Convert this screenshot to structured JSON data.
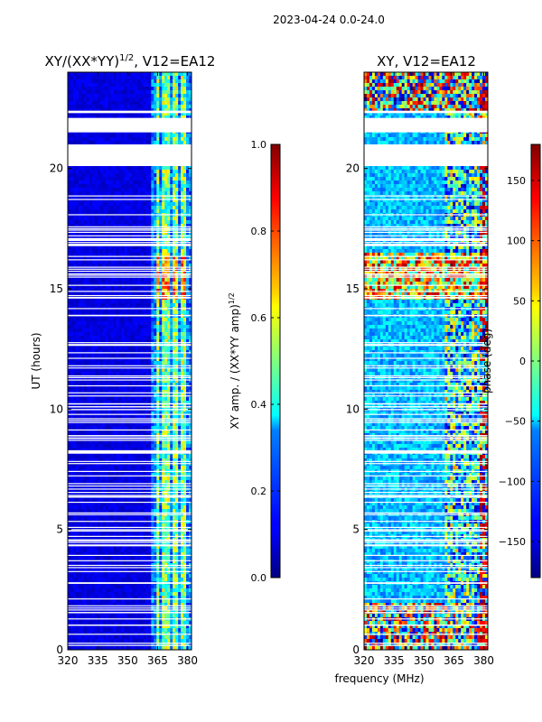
{
  "figure": {
    "suptitle": "2023-04-24 0.0-24.0",
    "shared_xlabel": "frequency (MHz)"
  },
  "chart_data": [
    {
      "type": "heatmap",
      "title": "XY/(XX*YY)",
      "title_exponent": "1/2",
      "title_suffix": ", V12=EA12",
      "xlabel": "",
      "ylabel": "UT (hours)",
      "xlim": [
        320,
        382
      ],
      "ylim": [
        0,
        24
      ],
      "x_ticks": [
        320,
        335,
        350,
        365,
        380
      ],
      "y_ticks": [
        0,
        5,
        10,
        15,
        20
      ],
      "colormap": "jet",
      "colorbar": {
        "label": "XY amp. / (XX*YY amp)",
        "label_exponent": "1/2",
        "range": [
          0.0,
          1.0
        ],
        "ticks": [
          "0.0",
          "0.2",
          "0.4",
          "0.6",
          "0.8",
          "1.0"
        ]
      },
      "flagged_ut_bands": [
        [
          20.1,
          21.0
        ],
        [
          21.5,
          22.1
        ],
        [
          22.3,
          22.4
        ]
      ],
      "bright_freq_channels": [
        365,
        368,
        370,
        373,
        375,
        378
      ]
    },
    {
      "type": "heatmap",
      "title": "XY, V12=EA12",
      "xlabel": "frequency (MHz)",
      "ylabel": "",
      "xlim": [
        320,
        382
      ],
      "ylim": [
        0,
        24
      ],
      "x_ticks": [
        320,
        335,
        350,
        365,
        380
      ],
      "y_ticks": [
        0,
        5,
        10,
        15,
        20
      ],
      "colormap": "jet",
      "colorbar": {
        "label": "phase (deg)",
        "range": [
          -180,
          180
        ],
        "ticks": [
          "−150",
          "−100",
          "−50",
          "0",
          "50",
          "100",
          "150"
        ]
      },
      "flagged_ut_bands": [
        [
          20.1,
          21.0
        ],
        [
          21.5,
          22.1
        ],
        [
          22.3,
          22.4
        ]
      ]
    }
  ]
}
